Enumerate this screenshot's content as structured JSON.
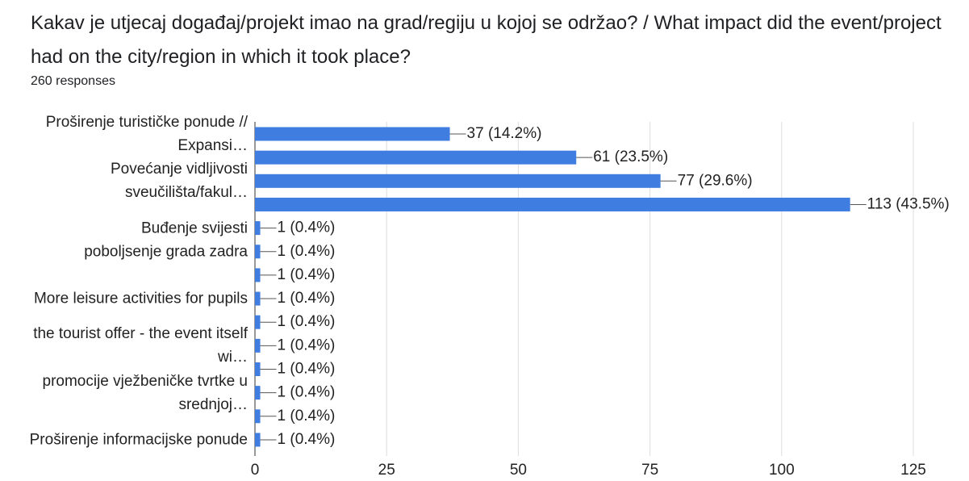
{
  "chart_data": {
    "type": "bar",
    "orientation": "horizontal",
    "title": "Kakav je utjecaj događaj/projekt imao na grad/regiju u kojoj se održao? / What impact did the event/project had on the city/region in which it took place?",
    "subtitle": "260 responses",
    "categories": [
      "Proširenje turističke ponude // Expansi…",
      null,
      "Povećanje vidljivosti sveučilišta/fakul…",
      null,
      "Buđenje svijesti",
      "poboljsenje grada zadra",
      null,
      "More leisure activities for pupils",
      null,
      "the tourist offer - the event itself wi…",
      null,
      "promocije vježbeničke tvrtke u srednjoj…",
      null,
      "Proširenje informacijske ponude"
    ],
    "values": [
      37,
      61,
      77,
      113,
      1,
      1,
      1,
      1,
      1,
      1,
      1,
      1,
      1,
      1
    ],
    "value_labels": [
      "37 (14.2%)",
      "61 (23.5%)",
      "77 (29.6%)",
      "113 (43.5%)",
      "1 (0.4%)",
      "1 (0.4%)",
      "1 (0.4%)",
      "1 (0.4%)",
      "1 (0.4%)",
      "1 (0.4%)",
      "1 (0.4%)",
      "1 (0.4%)",
      "1 (0.4%)",
      "1 (0.4%)"
    ],
    "color": "#3f7de0",
    "xlim": [
      0,
      125
    ],
    "xticks": [
      0,
      25,
      50,
      75,
      100,
      125
    ],
    "grid": true
  }
}
